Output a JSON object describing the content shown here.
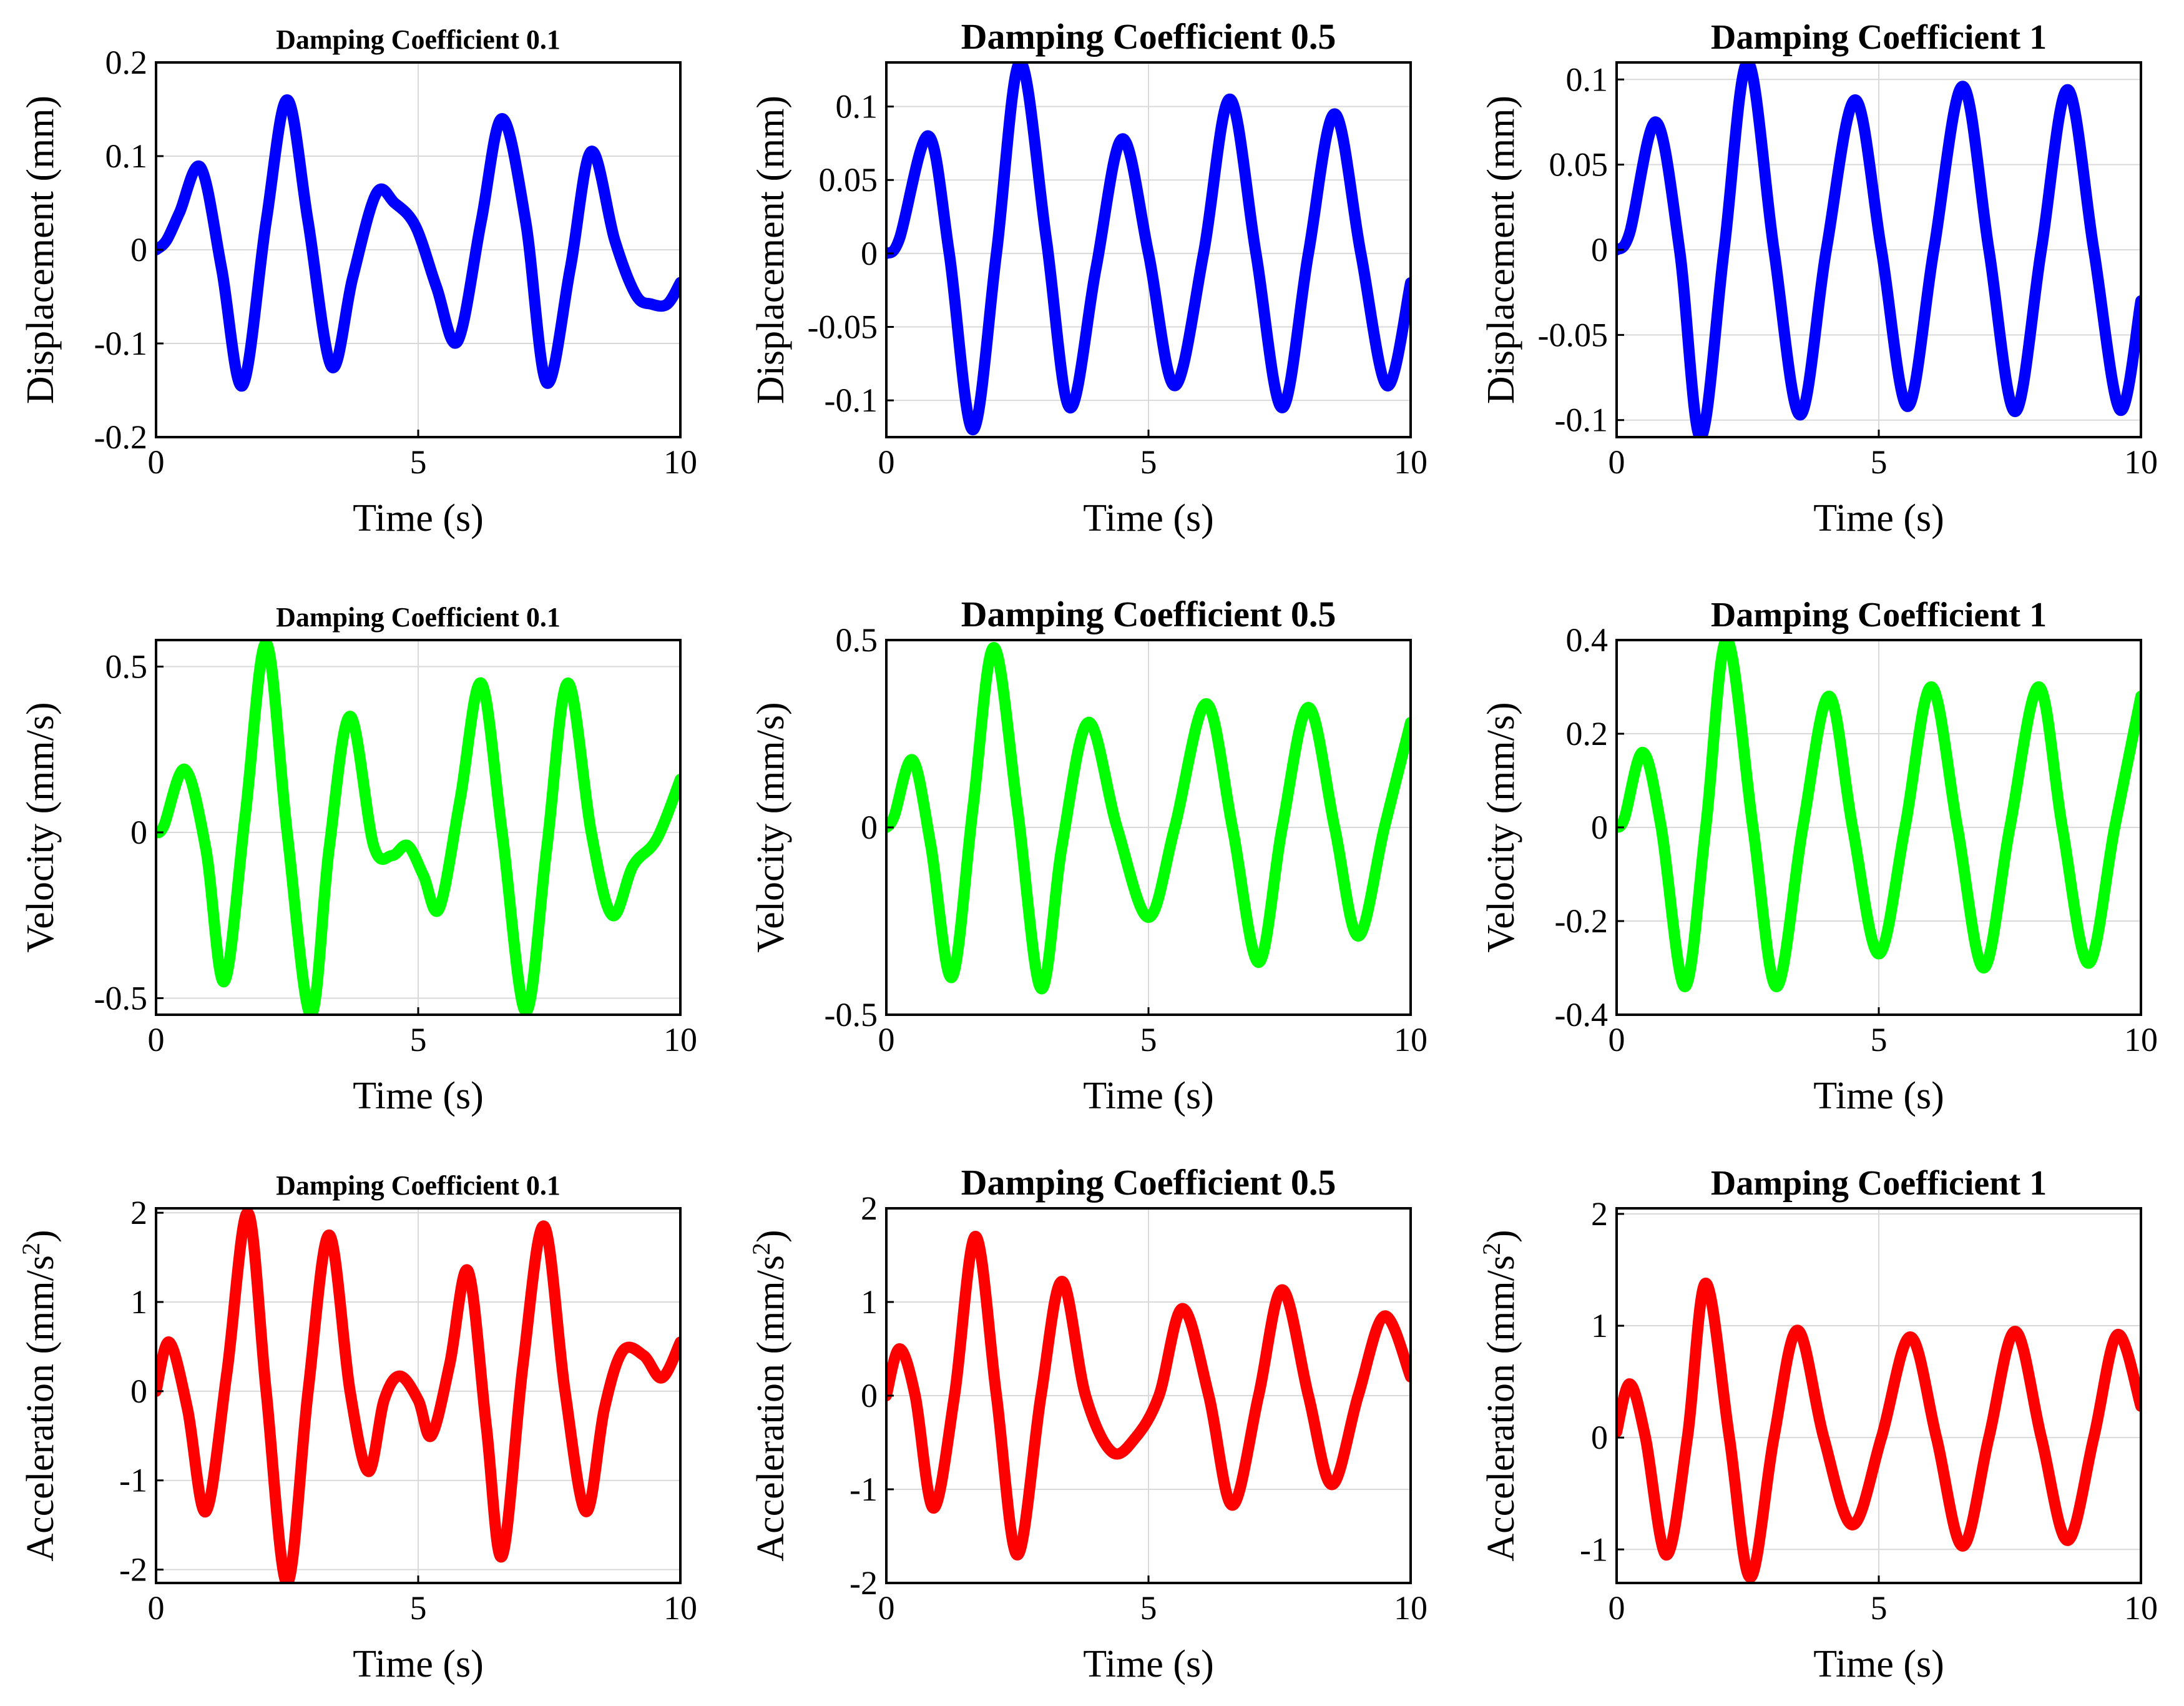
{
  "chart_data": [
    {
      "type": "line",
      "row": "displacement",
      "title": "Damping Coefficient 0.1",
      "xlabel": "Time (s)",
      "ylabel": "Displacement (mm)",
      "ylabel_sup": "",
      "xlim": [
        0,
        10
      ],
      "ylim": [
        -0.2,
        0.2
      ],
      "xticks": [
        0,
        5,
        10
      ],
      "xtick_labels": [
        "0",
        "5",
        "10"
      ],
      "yticks": [
        -0.2,
        -0.1,
        0,
        0.1,
        0.2
      ],
      "ytick_labels": [
        "-0.2",
        "-0.1",
        "0",
        "0.1",
        "0.2"
      ],
      "grid": true,
      "series": [
        {
          "name": "Displacement",
          "color": "#0000ff",
          "x": [
            0,
            0.2,
            0.45,
            0.85,
            1.25,
            1.65,
            2.1,
            2.5,
            2.9,
            3.35,
            3.75,
            4.2,
            4.55,
            4.95,
            5.35,
            5.75,
            6.2,
            6.6,
            7.05,
            7.45,
            7.9,
            8.3,
            8.75,
            9.15,
            9.45,
            9.75,
            10
          ],
          "y": [
            0,
            0.01,
            0.04,
            0.088,
            -0.02,
            -0.145,
            0.03,
            0.16,
            0.03,
            -0.125,
            -0.03,
            0.06,
            0.05,
            0.025,
            -0.04,
            -0.098,
            0.03,
            0.14,
            0.03,
            -0.142,
            -0.02,
            0.105,
            0.01,
            -0.048,
            -0.058,
            -0.058,
            -0.035
          ]
        }
      ]
    },
    {
      "type": "line",
      "row": "displacement",
      "title": "Damping Coefficient 0.5",
      "xlabel": "Time (s)",
      "ylabel": "Displacement (mm)",
      "ylabel_sup": "",
      "xlim": [
        0,
        10
      ],
      "ylim": [
        -0.125,
        0.13
      ],
      "xticks": [
        0,
        5,
        10
      ],
      "xtick_labels": [
        "0",
        "5",
        "10"
      ],
      "yticks": [
        -0.1,
        -0.05,
        0,
        0.05,
        0.1
      ],
      "ytick_labels": [
        "-0.1",
        "-0.05",
        "0",
        "0.05",
        "0.1"
      ],
      "grid": true,
      "series": [
        {
          "name": "Displacement",
          "color": "#0000ff",
          "x": [
            0,
            0.25,
            0.8,
            1.2,
            1.65,
            2.1,
            2.55,
            3.05,
            3.5,
            4.0,
            4.5,
            5.0,
            5.5,
            6.05,
            6.55,
            7.05,
            7.55,
            8.05,
            8.55,
            9.05,
            9.55,
            10
          ],
          "y": [
            0,
            0.01,
            0.08,
            0.0,
            -0.12,
            0.0,
            0.13,
            0.01,
            -0.105,
            -0.01,
            0.078,
            0.0,
            -0.09,
            0.0,
            0.105,
            0.0,
            -0.105,
            0.0,
            0.095,
            0.0,
            -0.09,
            -0.02
          ]
        }
      ]
    },
    {
      "type": "line",
      "row": "displacement",
      "title": "Damping Coefficient 1",
      "xlabel": "Time (s)",
      "ylabel": "Displacement (mm)",
      "ylabel_sup": "",
      "xlim": [
        0,
        10
      ],
      "ylim": [
        -0.11,
        0.11
      ],
      "xticks": [
        0,
        5,
        10
      ],
      "xtick_labels": [
        "0",
        "5",
        "10"
      ],
      "yticks": [
        -0.1,
        -0.05,
        0,
        0.05,
        0.1
      ],
      "ytick_labels": [
        "-0.1",
        "-0.05",
        "0",
        "0.05",
        "0.1"
      ],
      "grid": true,
      "series": [
        {
          "name": "Displacement",
          "color": "#0000ff",
          "x": [
            0,
            0.25,
            0.75,
            1.2,
            1.6,
            2.05,
            2.5,
            3.0,
            3.5,
            4.0,
            4.55,
            5.05,
            5.55,
            6.05,
            6.6,
            7.1,
            7.6,
            8.1,
            8.6,
            9.1,
            9.6,
            10
          ],
          "y": [
            0,
            0.01,
            0.075,
            0.0,
            -0.11,
            0.0,
            0.11,
            0.0,
            -0.097,
            0.0,
            0.088,
            0.0,
            -0.092,
            0.0,
            0.096,
            0.0,
            -0.095,
            0.0,
            0.094,
            0.0,
            -0.094,
            -0.03
          ]
        }
      ]
    },
    {
      "type": "line",
      "row": "velocity",
      "title": "Damping Coefficient 0.1",
      "xlabel": "Time (s)",
      "ylabel": "Velocity (mm/s)",
      "ylabel_sup": "",
      "xlim": [
        0,
        10
      ],
      "ylim": [
        -0.55,
        0.58
      ],
      "xticks": [
        0,
        5,
        10
      ],
      "xtick_labels": [
        "0",
        "5",
        "10"
      ],
      "yticks": [
        -0.5,
        0,
        0.5
      ],
      "ytick_labels": [
        "-0.5",
        "0",
        "0.5"
      ],
      "grid": true,
      "series": [
        {
          "name": "Velocity",
          "color": "#00ff00",
          "x": [
            0,
            0.15,
            0.55,
            0.95,
            1.3,
            1.7,
            2.1,
            2.5,
            2.95,
            3.3,
            3.7,
            4.15,
            4.5,
            4.8,
            5.1,
            5.4,
            5.8,
            6.2,
            6.6,
            7.05,
            7.45,
            7.85,
            8.3,
            8.7,
            9.1,
            9.55,
            10
          ],
          "y": [
            0,
            0.02,
            0.19,
            -0.05,
            -0.45,
            0.05,
            0.57,
            0.0,
            -0.55,
            -0.05,
            0.35,
            -0.04,
            -0.07,
            -0.04,
            -0.13,
            -0.23,
            0.1,
            0.45,
            0.0,
            -0.54,
            -0.05,
            0.45,
            0.0,
            -0.25,
            -0.1,
            -0.02,
            0.16
          ]
        }
      ]
    },
    {
      "type": "line",
      "row": "velocity",
      "title": "Damping Coefficient 0.5",
      "xlabel": "Time (s)",
      "ylabel": "Velocity (mm/s)",
      "ylabel_sup": "",
      "xlim": [
        0,
        10
      ],
      "ylim": [
        -0.5,
        0.5
      ],
      "xticks": [
        0,
        5,
        10
      ],
      "xtick_labels": [
        "0",
        "5",
        "10"
      ],
      "yticks": [
        -0.5,
        0,
        0.5
      ],
      "ytick_labels": [
        "-0.5",
        "0",
        "0.5"
      ],
      "grid": true,
      "series": [
        {
          "name": "Velocity",
          "color": "#00ff00",
          "x": [
            0,
            0.15,
            0.5,
            0.85,
            1.25,
            1.65,
            2.05,
            2.5,
            2.95,
            3.35,
            3.85,
            4.4,
            5.0,
            5.5,
            6.1,
            6.6,
            7.1,
            7.55,
            8.05,
            8.55,
            9.0,
            9.5,
            10
          ],
          "y": [
            0,
            0.03,
            0.18,
            -0.05,
            -0.4,
            0.05,
            0.48,
            0.05,
            -0.43,
            -0.05,
            0.28,
            0.0,
            -0.24,
            0.0,
            0.33,
            0.0,
            -0.36,
            0.0,
            0.32,
            0.0,
            -0.29,
            0.0,
            0.28
          ]
        }
      ]
    },
    {
      "type": "line",
      "row": "velocity",
      "title": "Damping Coefficient 1",
      "xlabel": "Time (s)",
      "ylabel": "Velocity (mm/s)",
      "ylabel_sup": "",
      "xlim": [
        0,
        10
      ],
      "ylim": [
        -0.4,
        0.4
      ],
      "xticks": [
        0,
        5,
        10
      ],
      "xtick_labels": [
        "0",
        "5",
        "10"
      ],
      "yticks": [
        -0.4,
        -0.2,
        0,
        0.2,
        0.4
      ],
      "ytick_labels": [
        "-0.4",
        "-0.2",
        "0",
        "0.2",
        "0.4"
      ],
      "grid": true,
      "series": [
        {
          "name": "Velocity",
          "color": "#00ff00",
          "x": [
            0,
            0.15,
            0.5,
            0.85,
            1.3,
            1.7,
            2.1,
            2.6,
            3.05,
            3.55,
            4.05,
            4.5,
            5.0,
            5.5,
            6.0,
            6.5,
            7.0,
            7.5,
            8.05,
            8.5,
            9.0,
            9.5,
            10
          ],
          "y": [
            0,
            0.02,
            0.16,
            0.0,
            -0.34,
            0.0,
            0.4,
            0.0,
            -0.34,
            0.0,
            0.28,
            0.0,
            -0.27,
            0.0,
            0.3,
            0.0,
            -0.3,
            0.0,
            0.3,
            0.0,
            -0.29,
            0.0,
            0.28
          ]
        }
      ]
    },
    {
      "type": "line",
      "row": "acceleration",
      "title": "Damping Coefficient 0.1",
      "xlabel": "Time (s)",
      "ylabel": "Acceleration  (mm/s",
      "ylabel_sup": "2",
      "ylabel_end": ")",
      "xlim": [
        0,
        10
      ],
      "ylim": [
        -2.15,
        2.05
      ],
      "xticks": [
        0,
        5,
        10
      ],
      "xtick_labels": [
        "0",
        "5",
        "10"
      ],
      "yticks": [
        -2,
        -1,
        0,
        1,
        2
      ],
      "ytick_labels": [
        "-2",
        "-1",
        "0",
        "1",
        "2"
      ],
      "grid": true,
      "series": [
        {
          "name": "Acceleration",
          "color": "#ff0000",
          "x": [
            0,
            0.25,
            0.6,
            0.95,
            1.35,
            1.75,
            2.1,
            2.5,
            2.9,
            3.3,
            3.7,
            4.05,
            4.35,
            4.65,
            5.0,
            5.25,
            5.6,
            5.95,
            6.3,
            6.6,
            7.0,
            7.4,
            7.8,
            8.2,
            8.55,
            8.9,
            9.3,
            9.65,
            10
          ],
          "y": [
            0,
            0.55,
            -0.2,
            -1.35,
            0.2,
            2.0,
            0.0,
            -2.15,
            0.0,
            1.75,
            0.0,
            -0.9,
            -0.1,
            0.17,
            -0.1,
            -0.5,
            0.3,
            1.35,
            -0.4,
            -1.85,
            0.3,
            1.85,
            0.0,
            -1.35,
            -0.2,
            0.45,
            0.4,
            0.15,
            0.55
          ]
        }
      ]
    },
    {
      "type": "line",
      "row": "acceleration",
      "title": "Damping Coefficient 0.5",
      "xlabel": "Time (s)",
      "ylabel": "Acceleration  (mm/s",
      "ylabel_sup": "2",
      "ylabel_end": ")",
      "xlim": [
        0,
        10
      ],
      "ylim": [
        -2,
        2
      ],
      "xticks": [
        0,
        5,
        10
      ],
      "xtick_labels": [
        "0",
        "5",
        "10"
      ],
      "yticks": [
        -2,
        -1,
        0,
        1,
        2
      ],
      "ytick_labels": [
        "-2",
        "-1",
        "0",
        "1",
        "2"
      ],
      "grid": true,
      "series": [
        {
          "name": "Acceleration",
          "color": "#ff0000",
          "x": [
            0,
            0.25,
            0.55,
            0.9,
            1.3,
            1.7,
            2.1,
            2.5,
            2.95,
            3.35,
            3.8,
            4.3,
            4.75,
            5.2,
            5.65,
            6.15,
            6.6,
            7.1,
            7.55,
            8.05,
            8.5,
            9.0,
            9.5,
            10
          ],
          "y": [
            0,
            0.5,
            0.0,
            -1.2,
            0.0,
            1.7,
            0.0,
            -1.7,
            0.0,
            1.22,
            0.0,
            -0.6,
            -0.45,
            0.0,
            0.93,
            0.0,
            -1.17,
            0.0,
            1.13,
            0.0,
            -0.95,
            0.0,
            0.85,
            0.2
          ]
        }
      ]
    },
    {
      "type": "line",
      "row": "acceleration",
      "title": "Damping Coefficient 1",
      "xlabel": "Time (s)",
      "ylabel": "Acceleration  (mm/s",
      "ylabel_sup": "2",
      "ylabel_end": ")",
      "xlim": [
        0,
        10
      ],
      "ylim": [
        -1.3,
        2.05
      ],
      "xticks": [
        0,
        5,
        10
      ],
      "xtick_labels": [
        "0",
        "5",
        "10"
      ],
      "yticks": [
        -1,
        0,
        1,
        2
      ],
      "ytick_labels": [
        "-1",
        "0",
        "1",
        "2"
      ],
      "grid": true,
      "series": [
        {
          "name": "Acceleration",
          "color": "#ff0000",
          "x": [
            0,
            0.25,
            0.55,
            0.95,
            1.35,
            1.7,
            2.15,
            2.55,
            3.0,
            3.45,
            3.95,
            4.5,
            5.05,
            5.6,
            6.1,
            6.6,
            7.1,
            7.6,
            8.1,
            8.6,
            9.1,
            9.55,
            10
          ],
          "y": [
            0.05,
            0.48,
            0.0,
            -1.05,
            0.0,
            1.38,
            0.0,
            -1.25,
            0.0,
            0.96,
            0.0,
            -0.78,
            0.0,
            0.9,
            0.0,
            -0.97,
            0.0,
            0.95,
            0.0,
            -0.92,
            0.0,
            0.92,
            0.28
          ]
        }
      ]
    }
  ]
}
